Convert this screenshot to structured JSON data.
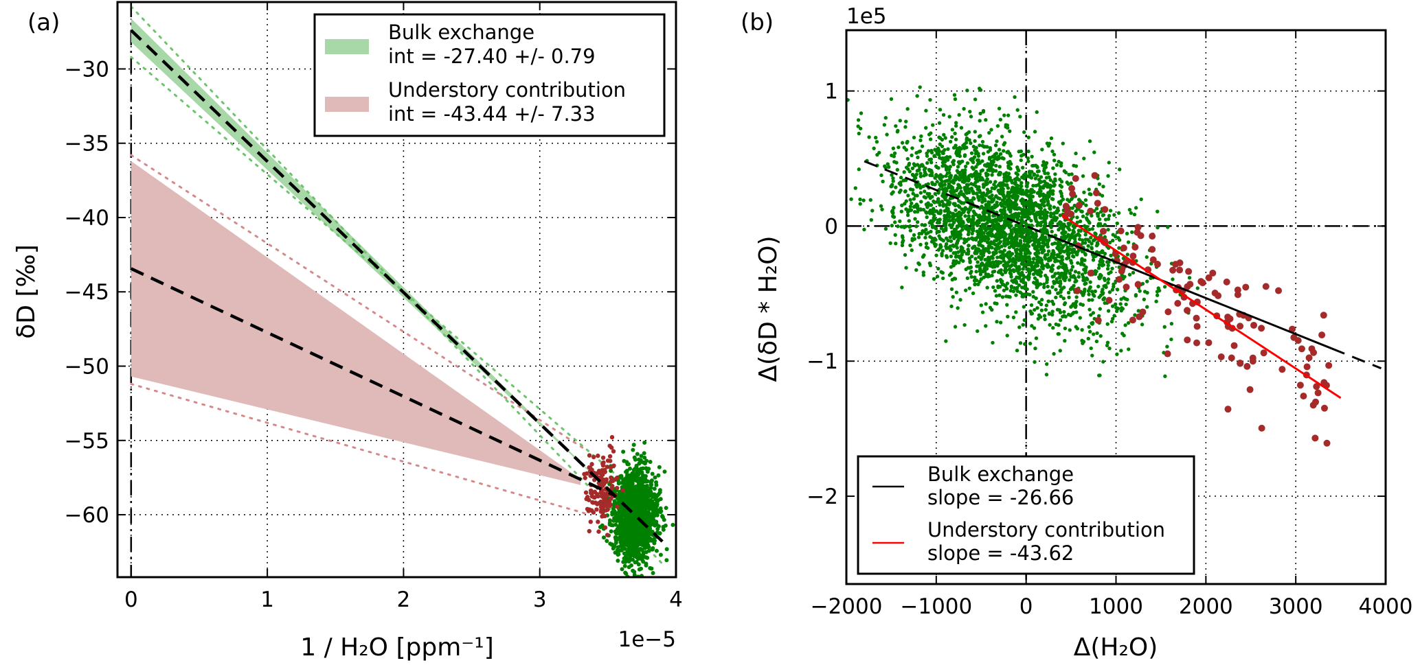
{
  "chart_data": [
    {
      "panel_label": "(a)",
      "type": "scatter",
      "xlabel": "1 / H₂O [ppm⁻¹]",
      "ylabel": "δD [‰]",
      "x_offset_text": "1e−5",
      "xlim": [
        -0.1,
        4.0
      ],
      "ylim": [
        -64.2,
        -25.5
      ],
      "xticks": [
        0,
        1,
        2,
        3,
        4
      ],
      "xtick_labels": [
        "0",
        "1",
        "2",
        "3",
        "4"
      ],
      "yticks": [
        -30,
        -35,
        -40,
        -45,
        -50,
        -55,
        -60
      ],
      "ytick_labels": [
        "−30",
        "−35",
        "−40",
        "−45",
        "−50",
        "−55",
        "−60"
      ],
      "grid": true,
      "legend_position": "top-right",
      "legend": [
        {
          "name": "Bulk exchange",
          "detail": "int = -27.40 +/- 0.79",
          "color": "#a8d8a8"
        },
        {
          "name": "Understory contribution",
          "detail": "int = -43.44 +/- 7.33",
          "color": "#e0b9b9"
        }
      ],
      "fits": [
        {
          "series": "Bulk exchange",
          "intercept": -27.4,
          "intercept_err": 0.79,
          "line": [
            [
              0,
              -27.4
            ],
            [
              3.9,
              -61.8
            ]
          ],
          "band_x0": [
            -28.2,
            -26.6
          ],
          "dotted": [
            [
              [
                0,
                -25.8
              ],
              [
                3.9,
                -63.3
              ]
            ],
            [
              [
                0,
                -29.2
              ],
              [
                3.9,
                -60.0
              ]
            ]
          ],
          "color": "#6cc46c"
        },
        {
          "series": "Understory contribution",
          "intercept": -43.44,
          "intercept_err": 7.33,
          "line": [
            [
              0,
              -43.44
            ],
            [
              3.55,
              -58.7
            ]
          ],
          "band": {
            "upper": [
              [
                0,
                -36.2
              ],
              [
                3.3,
                -57.6
              ]
            ],
            "lower": [
              [
                0,
                -50.7
              ],
              [
                3.3,
                -58.0
              ]
            ]
          },
          "dotted": [
            [
              [
                0,
                -35.8
              ],
              [
                3.35,
                -55.7
              ]
            ],
            [
              [
                0,
                -51.2
              ],
              [
                3.33,
                -59.9
              ]
            ]
          ],
          "color": "#d48a8a"
        }
      ],
      "scatter_clusters": [
        {
          "color": "#008000",
          "center": [
            3.7,
            -60.0
          ],
          "spread": [
            0.08,
            1.6
          ],
          "approx_points": 1500
        },
        {
          "color": "#a52a2a",
          "center": [
            3.45,
            -58.3
          ],
          "spread": [
            0.06,
            1.2
          ],
          "approx_points": 150
        }
      ]
    },
    {
      "panel_label": "(b)",
      "type": "scatter",
      "xlabel": "Δ(H₂O)",
      "ylabel": "Δ(δD * H₂O)",
      "y_offset_text": "1e5",
      "xlim": [
        -2000,
        4000
      ],
      "ylim": [
        -2.65,
        1.45
      ],
      "xticks": [
        -2000,
        -1000,
        0,
        1000,
        2000,
        3000,
        4000
      ],
      "xtick_labels": [
        "−2000",
        "−1000",
        "0",
        "1000",
        "2000",
        "3000",
        "4000"
      ],
      "yticks": [
        1,
        0,
        -1,
        -2
      ],
      "ytick_labels": [
        "1",
        "0",
        "−1",
        "−2"
      ],
      "grid": true,
      "legend_position": "bottom-left",
      "legend": [
        {
          "name": "Bulk exchange",
          "detail": "slope = -26.66",
          "color": "#000000"
        },
        {
          "name": "Understory contribution",
          "detail": "slope = -43.62",
          "color": "#ff0000"
        }
      ],
      "fits": [
        {
          "series": "Bulk exchange",
          "slope": -26.66,
          "x_range": [
            -1800,
            3950
          ],
          "solid_range": [
            300,
            3400
          ],
          "color": "#000000"
        },
        {
          "series": "Understory contribution",
          "slope": -43.62,
          "intercept": 0.254,
          "x_range": [
            400,
            3500
          ],
          "color": "#ff0000"
        }
      ],
      "scatter_clusters": [
        {
          "color": "#008000",
          "center": [
            -200,
            0.0
          ],
          "spread": [
            650,
            0.3
          ],
          "trend_per_1000": -0.25,
          "approx_points": 3000
        },
        {
          "color": "#a52a2a",
          "x_range": [
            400,
            3400
          ],
          "spread_y": 0.22,
          "approx_points": 130
        }
      ]
    }
  ]
}
